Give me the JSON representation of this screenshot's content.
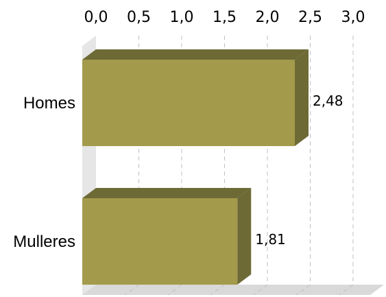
{
  "chart_data": {
    "type": "bar",
    "orientation": "horizontal",
    "style": "3d",
    "categories": [
      "Homes",
      "Mulleres"
    ],
    "values": [
      2.48,
      1.81
    ],
    "data_labels": [
      "2,48",
      "1,81"
    ],
    "x_ticks": [
      "0,0",
      "0,5",
      "1,0",
      "1,5",
      "2,0",
      "2,5",
      "3,0"
    ],
    "xlim": [
      0,
      3.0
    ],
    "x_axis_position": "top",
    "grid": "vertical-dashed",
    "legend": "none",
    "title": "",
    "xlabel": "",
    "ylabel": "",
    "colors": {
      "bar_front": "#a39b4b",
      "bar_top": "#6e6a36",
      "bar_side": "#6e6a36",
      "floor": "#d9d9d9",
      "wall": "#e6e6e6",
      "grid": "#bfbfbf"
    }
  }
}
